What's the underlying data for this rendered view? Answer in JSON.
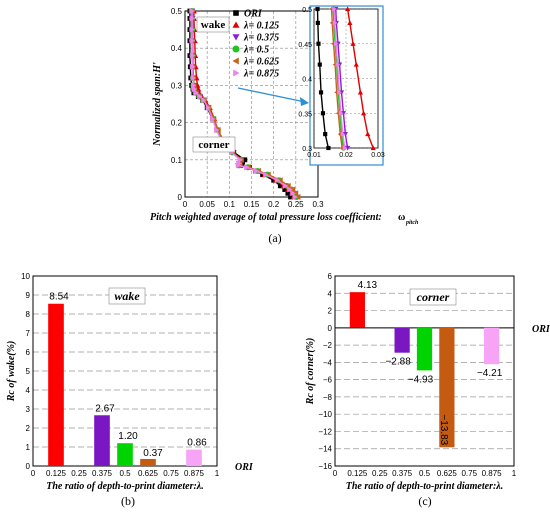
{
  "panels": {
    "a": "(a)",
    "b": "(b)",
    "c": "(c)"
  },
  "chart_data": [
    {
      "type": "line",
      "id": "a",
      "xlabel": "Pitch weighted average of total pressure loss coefficient:",
      "xlabel_symbol": "ω",
      "xlabel_sub": "pitch",
      "ylabel": "Normalized span:H'",
      "xlim": [
        0,
        0.3
      ],
      "ylim": [
        0,
        0.5
      ],
      "xticks": [
        "0",
        "0.05",
        "0.1",
        "0.15",
        "0.2",
        "0.25",
        "0.3"
      ],
      "yticks": [
        "0",
        "0.1",
        "0.2",
        "0.3",
        "0.4",
        "0.5"
      ],
      "annotations": [
        "wake",
        "corner"
      ],
      "legend_position": "top-right",
      "series": [
        {
          "name": "ORI",
          "legend": "ORI",
          "color": "#000000",
          "marker": "square",
          "offset": 0.0,
          "y": [
            0.0,
            0.01,
            0.02,
            0.03,
            0.045,
            0.06,
            0.07,
            0.08,
            0.085,
            0.09,
            0.1,
            0.12,
            0.15,
            0.18,
            0.21,
            0.24,
            0.26,
            0.27,
            0.28,
            0.29,
            0.3,
            0.32,
            0.35,
            0.38,
            0.42,
            0.45,
            0.48,
            0.5
          ],
          "x": [
            0.238,
            0.232,
            0.225,
            0.215,
            0.2,
            0.175,
            0.16,
            0.145,
            0.125,
            0.13,
            0.135,
            0.11,
            0.085,
            0.072,
            0.062,
            0.05,
            0.04,
            0.03,
            0.02,
            0.018,
            0.015,
            0.013,
            0.012,
            0.011,
            0.011,
            0.011,
            0.011,
            0.011
          ]
        },
        {
          "name": "λ = 0.125",
          "legend": "λ= 0.125",
          "color": "#e00000",
          "marker": "triangle-up",
          "y": [
            0.0,
            0.01,
            0.02,
            0.03,
            0.045,
            0.06,
            0.07,
            0.08,
            0.085,
            0.09,
            0.1,
            0.12,
            0.15,
            0.18,
            0.21,
            0.24,
            0.26,
            0.27,
            0.28,
            0.29,
            0.3,
            0.32,
            0.35,
            0.38,
            0.42,
            0.45,
            0.48,
            0.5
          ],
          "x": [
            0.245,
            0.24,
            0.232,
            0.222,
            0.205,
            0.18,
            0.16,
            0.14,
            0.122,
            0.125,
            0.128,
            0.108,
            0.085,
            0.074,
            0.066,
            0.056,
            0.046,
            0.038,
            0.032,
            0.03,
            0.028,
            0.026,
            0.024,
            0.023,
            0.022,
            0.021,
            0.02,
            0.02
          ]
        },
        {
          "name": "λ = 0.375",
          "legend": "λ= 0.375",
          "color": "#8a1fd6",
          "marker": "triangle-down",
          "y": [
            0.0,
            0.01,
            0.02,
            0.03,
            0.045,
            0.06,
            0.07,
            0.08,
            0.085,
            0.09,
            0.1,
            0.12,
            0.15,
            0.18,
            0.21,
            0.24,
            0.26,
            0.27,
            0.28,
            0.29,
            0.3,
            0.32,
            0.35,
            0.38,
            0.42,
            0.45,
            0.48,
            0.5
          ],
          "x": [
            0.25,
            0.245,
            0.238,
            0.228,
            0.21,
            0.184,
            0.162,
            0.14,
            0.12,
            0.122,
            0.125,
            0.106,
            0.084,
            0.072,
            0.063,
            0.053,
            0.043,
            0.034,
            0.026,
            0.022,
            0.02,
            0.019,
            0.018,
            0.018,
            0.017,
            0.017,
            0.017,
            0.016
          ]
        },
        {
          "name": "λ = 0.5",
          "legend": "λ= 0.5",
          "color": "#22c322",
          "marker": "circle",
          "y": [
            0.0,
            0.01,
            0.02,
            0.03,
            0.045,
            0.06,
            0.07,
            0.08,
            0.085,
            0.09,
            0.1,
            0.12,
            0.15,
            0.18,
            0.21,
            0.24,
            0.26,
            0.27,
            0.28,
            0.29,
            0.3,
            0.32,
            0.35,
            0.38,
            0.42,
            0.45,
            0.48,
            0.5
          ],
          "x": [
            0.252,
            0.247,
            0.24,
            0.23,
            0.212,
            0.186,
            0.164,
            0.142,
            0.121,
            0.123,
            0.126,
            0.107,
            0.086,
            0.074,
            0.064,
            0.053,
            0.042,
            0.032,
            0.024,
            0.02,
            0.019,
            0.018,
            0.017,
            0.017,
            0.016,
            0.016,
            0.016,
            0.015
          ]
        },
        {
          "name": "λ = 0.625",
          "legend": "λ= 0.625",
          "color": "#c8621a",
          "marker": "triangle-left",
          "y": [
            0.0,
            0.01,
            0.02,
            0.03,
            0.045,
            0.06,
            0.07,
            0.08,
            0.085,
            0.09,
            0.1,
            0.12,
            0.15,
            0.18,
            0.21,
            0.24,
            0.26,
            0.27,
            0.28,
            0.29,
            0.3,
            0.32,
            0.35,
            0.38,
            0.42,
            0.45,
            0.48,
            0.5
          ],
          "x": [
            0.255,
            0.25,
            0.243,
            0.233,
            0.215,
            0.188,
            0.166,
            0.143,
            0.122,
            0.124,
            0.127,
            0.108,
            0.087,
            0.075,
            0.065,
            0.054,
            0.043,
            0.033,
            0.025,
            0.021,
            0.019,
            0.018,
            0.017,
            0.016,
            0.016,
            0.015,
            0.015,
            0.015
          ]
        },
        {
          "name": "λ = 0.875",
          "legend": "λ= 0.875",
          "color": "#ee82ee",
          "marker": "triangle-right",
          "y": [
            0.0,
            0.01,
            0.02,
            0.03,
            0.045,
            0.06,
            0.07,
            0.08,
            0.085,
            0.09,
            0.1,
            0.12,
            0.15,
            0.18,
            0.21,
            0.24,
            0.26,
            0.27,
            0.28,
            0.29,
            0.3,
            0.32,
            0.35,
            0.38,
            0.42,
            0.45,
            0.48,
            0.5
          ],
          "x": [
            0.248,
            0.243,
            0.236,
            0.226,
            0.208,
            0.182,
            0.161,
            0.139,
            0.12,
            0.122,
            0.124,
            0.105,
            0.083,
            0.071,
            0.062,
            0.052,
            0.042,
            0.033,
            0.025,
            0.021,
            0.019,
            0.018,
            0.017,
            0.017,
            0.016,
            0.016,
            0.016,
            0.016
          ]
        }
      ],
      "inset": {
        "xlim": [
          0.01,
          0.03
        ],
        "ylim": [
          0.3,
          0.5
        ],
        "xticks": [
          "0.01",
          "0.02",
          "0.03"
        ],
        "yticks": [
          "0.3",
          "0.35",
          "0.4",
          "0.45",
          "0.5"
        ]
      }
    },
    {
      "type": "bar",
      "id": "b",
      "title": "wake",
      "xlabel": "The ratio of depth-to-print diameter:λ.",
      "ylabel": "Rc of wake(%)",
      "ylim": [
        0,
        10
      ],
      "yticks": [
        "0",
        "1",
        "2",
        "3",
        "4",
        "5",
        "6",
        "7",
        "8",
        "9",
        "10"
      ],
      "xticks": [
        "0",
        "0.125",
        "0.25",
        "0.375",
        "0.5",
        "0.625",
        "0.75",
        "0.875",
        "1"
      ],
      "baseline_label": "ORI",
      "x": [
        0.125,
        0.375,
        0.5,
        0.625,
        0.875
      ],
      "values": [
        8.54,
        2.67,
        1.2,
        0.37,
        0.86
      ],
      "labels": [
        "8.54",
        "2.67",
        "1.20",
        "0.37",
        "0.86"
      ],
      "colors": [
        "#ff0000",
        "#7a16c2",
        "#00d400",
        "#c55a11",
        "#f7a4f7"
      ]
    },
    {
      "type": "bar",
      "id": "c",
      "title": "corner",
      "xlabel": "The ratio of depth-to-print diameter:λ.",
      "ylabel": "Rc of corner(%)",
      "ylim": [
        -16,
        6
      ],
      "yticks": [
        "-16",
        "-14",
        "-12",
        "-10",
        "-8",
        "-6",
        "-4",
        "-2",
        "0",
        "2",
        "4",
        "6"
      ],
      "xticks": [
        "0",
        "0.125",
        "0.25",
        "0.375",
        "0.5",
        "0.625",
        "0.75",
        "0.875",
        "1"
      ],
      "baseline_label": "ORI",
      "x": [
        0.125,
        0.375,
        0.5,
        0.625,
        0.875
      ],
      "values": [
        4.13,
        -2.88,
        -4.93,
        -13.83,
        -4.21
      ],
      "labels": [
        "4.13",
        "−2.88",
        "−4.93",
        "−13.83",
        "−4.21"
      ],
      "colors": [
        "#ff0000",
        "#7a16c2",
        "#00d400",
        "#c55a11",
        "#f7a4f7"
      ]
    }
  ]
}
